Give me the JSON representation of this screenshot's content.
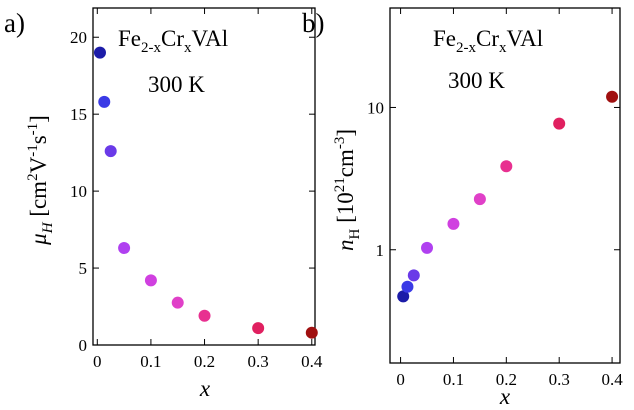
{
  "chart_data": [
    {
      "type": "scatter",
      "panel_label": "a)",
      "annotation": [
        "Fe",
        "2-x",
        "Cr",
        "x",
        "VAl"
      ],
      "annotation2": "300 K",
      "xlabel": "x",
      "ylabel": [
        "μ",
        "H",
        " [cm",
        "2",
        "V",
        "-1",
        "s",
        "-1",
        "]"
      ],
      "x": [
        0.005,
        0.013,
        0.025,
        0.05,
        0.1,
        0.15,
        0.2,
        0.3,
        0.4
      ],
      "values": [
        19.0,
        15.8,
        12.6,
        6.3,
        4.2,
        2.75,
        1.9,
        1.1,
        0.8
      ],
      "colors": [
        "#1c1ca8",
        "#3a3ae6",
        "#6a3ae8",
        "#b040f0",
        "#d040e0",
        "#e040c8",
        "#e83090",
        "#e02060",
        "#a01010"
      ],
      "xlim": [
        -0.008,
        0.406
      ],
      "ylim": [
        0,
        21.9
      ],
      "xticks": [
        0,
        0.1,
        0.2,
        0.3,
        0.4
      ],
      "yticks": [
        0,
        5,
        10,
        15,
        20
      ],
      "log_y": false
    },
    {
      "type": "scatter",
      "panel_label": "b)",
      "annotation": [
        "Fe",
        "2-x",
        "Cr",
        "x",
        "VAl"
      ],
      "annotation2": "300 K",
      "xlabel": "x",
      "ylabel": [
        "n",
        "H",
        " [10",
        "21",
        "cm",
        "-3",
        "]"
      ],
      "x": [
        0.005,
        0.013,
        0.025,
        0.05,
        0.1,
        0.15,
        0.2,
        0.3,
        0.4
      ],
      "values": [
        0.47,
        0.55,
        0.66,
        1.03,
        1.52,
        2.27,
        3.86,
        7.7,
        11.9
      ],
      "colors": [
        "#1c1ca8",
        "#3a3ae6",
        "#6a3ae8",
        "#b040f0",
        "#d040e0",
        "#e040c8",
        "#e83090",
        "#e02060",
        "#a01010"
      ],
      "xlim": [
        -0.02,
        0.415
      ],
      "ylim": [
        0.16,
        50
      ],
      "xticks": [
        0,
        0.1,
        0.2,
        0.3,
        0.4
      ],
      "yticks": [
        1,
        10
      ],
      "log_y": true
    }
  ]
}
